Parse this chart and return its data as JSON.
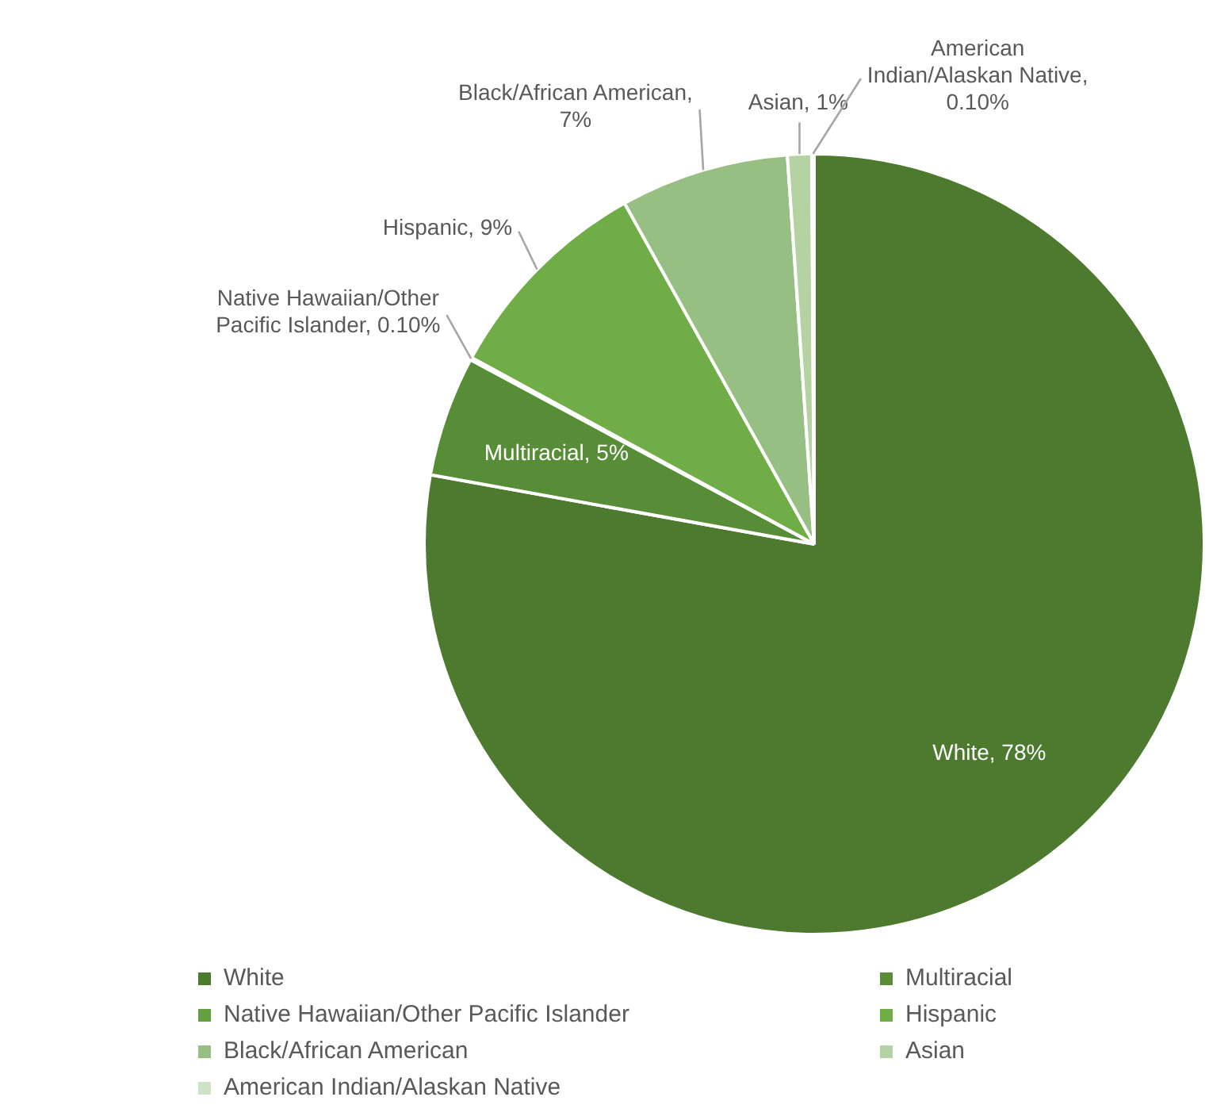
{
  "chart_data": {
    "type": "pie",
    "categories": [
      "White",
      "Multiracial",
      "Native Hawaiian/Other Pacific Islander",
      "Hispanic",
      "Black/African American",
      "Asian",
      "American Indian/Alaskan Native"
    ],
    "values": [
      78,
      5,
      0.1,
      9,
      7,
      1,
      0.1
    ],
    "value_labels": [
      "White, 78%",
      "Multiracial, 5%",
      "Native Hawaiian/Other Pacific Islander, 0.10%",
      "Hispanic, 9%",
      "Black/African American, 7%",
      "Asian, 1%",
      "American Indian/Alaskan Native, 0.10%"
    ],
    "colors": [
      "#4e7a2f",
      "#578d36",
      "#63a03f",
      "#70ad47",
      "#97bf84",
      "#b5d3a2",
      "#d0e2c5"
    ],
    "legend": "bottom"
  }
}
